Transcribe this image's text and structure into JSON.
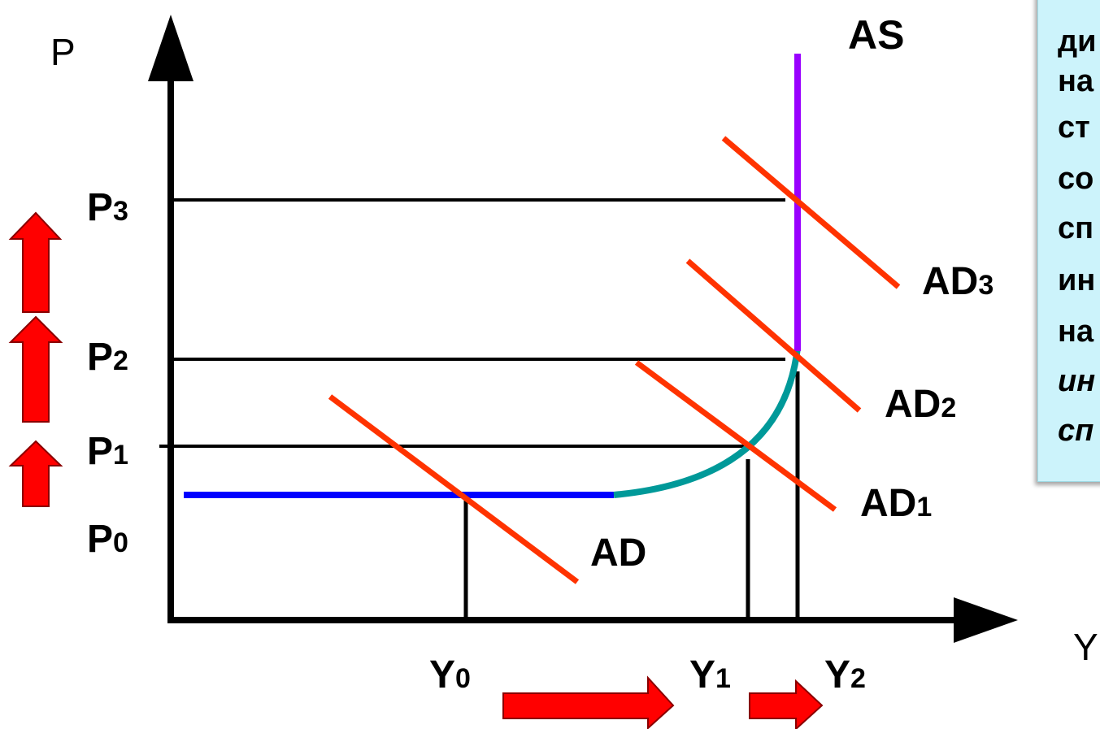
{
  "axes": {
    "y_label": "P",
    "x_label": "Y"
  },
  "price_levels": [
    {
      "base": "P",
      "sub": "0"
    },
    {
      "base": "P",
      "sub": "1"
    },
    {
      "base": "P",
      "sub": "2"
    },
    {
      "base": "P",
      "sub": "3"
    }
  ],
  "output_levels": [
    {
      "base": "Y",
      "sub": "0"
    },
    {
      "base": "Y",
      "sub": "1"
    },
    {
      "base": "Y",
      "sub": "2"
    }
  ],
  "curves": {
    "as": "AS",
    "demand": [
      {
        "base": "AD",
        "sub": ""
      },
      {
        "base": "AD",
        "sub": "1"
      },
      {
        "base": "AD",
        "sub": "2"
      },
      {
        "base": "AD",
        "sub": "3"
      }
    ]
  },
  "note_lines": [
    "ди",
    "на",
    "ст",
    "со",
    "сп",
    "ин",
    "на",
    "ин",
    "сп"
  ],
  "colors": {
    "horizontal_segment": "#0000ff",
    "intermediate_segment": "#009999",
    "vertical_segment": "#9900ff",
    "demand": "#ff3300",
    "arrows": "#ff0000",
    "note_bg": "#ccf3fb"
  }
}
